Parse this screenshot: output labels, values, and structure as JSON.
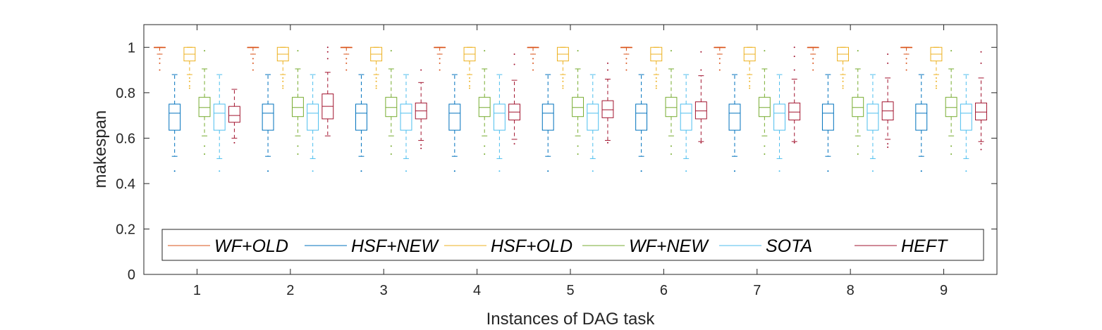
{
  "chart_data": {
    "type": "box",
    "title": "",
    "xlabel": "Instances of DAG task",
    "ylabel": "makespan",
    "ylim": [
      0,
      1.1
    ],
    "xlim": [
      0.43,
      9.57
    ],
    "yticks": [
      0,
      0.2,
      0.4,
      0.6,
      0.8,
      1
    ],
    "yticklabels": [
      "0",
      "0.2",
      "0.4",
      "0.6",
      "0.8",
      "1"
    ],
    "categories": [
      "1",
      "2",
      "3",
      "4",
      "5",
      "6",
      "7",
      "8",
      "9"
    ],
    "grid": false,
    "legend": {
      "position": "bottom-inside",
      "orientation": "horizontal"
    },
    "series": [
      {
        "name": "WF+OLD",
        "color": "#D95319",
        "offset": -0.4,
        "q1": [
          1.0,
          1.0,
          1.0,
          1.0,
          1.0,
          1.0,
          1.0,
          1.0,
          1.0
        ],
        "median": [
          1.0,
          1.0,
          1.0,
          1.0,
          1.0,
          1.0,
          1.0,
          1.0,
          1.0
        ],
        "q3": [
          1.0,
          1.0,
          1.0,
          1.0,
          1.0,
          1.0,
          1.0,
          1.0,
          1.0
        ],
        "lower_whisker": [
          0.97,
          0.97,
          0.97,
          0.97,
          0.97,
          0.97,
          0.97,
          0.97,
          0.97
        ],
        "upper_whisker": [
          1.0,
          1.0,
          1.0,
          1.0,
          1.0,
          1.0,
          1.0,
          1.0,
          1.0
        ],
        "outliers": [
          [
            0.95,
            0.93,
            0.9
          ],
          [
            0.95,
            0.93,
            0.9
          ],
          [
            0.95,
            0.93,
            0.9
          ],
          [
            0.95,
            0.93,
            0.9
          ],
          [
            0.95,
            0.93,
            0.9
          ],
          [
            0.95,
            0.93,
            0.9
          ],
          [
            0.95,
            0.93,
            0.9
          ],
          [
            0.95,
            0.93,
            0.9
          ],
          [
            0.95,
            0.93,
            0.9
          ]
        ]
      },
      {
        "name": "HSF+NEW",
        "color": "#0072BD",
        "offset": -0.24,
        "q1": [
          0.635,
          0.635,
          0.635,
          0.635,
          0.635,
          0.635,
          0.635,
          0.635,
          0.635
        ],
        "median": [
          0.71,
          0.71,
          0.71,
          0.71,
          0.71,
          0.71,
          0.71,
          0.71,
          0.71
        ],
        "q3": [
          0.75,
          0.75,
          0.75,
          0.75,
          0.75,
          0.75,
          0.75,
          0.75,
          0.75
        ],
        "lower_whisker": [
          0.52,
          0.52,
          0.52,
          0.52,
          0.52,
          0.52,
          0.52,
          0.52,
          0.52
        ],
        "upper_whisker": [
          0.88,
          0.88,
          0.88,
          0.88,
          0.88,
          0.88,
          0.88,
          0.88,
          0.88
        ],
        "outliers": [
          [
            0.455
          ],
          [
            0.455
          ],
          [
            0.455
          ],
          [
            0.455
          ],
          [
            0.455
          ],
          [
            0.455
          ],
          [
            0.455
          ],
          [
            0.455
          ],
          [
            0.455
          ]
        ]
      },
      {
        "name": "HSF+OLD",
        "color": "#EDB120",
        "offset": -0.08,
        "q1": [
          0.94,
          0.94,
          0.94,
          0.94,
          0.94,
          0.94,
          0.94,
          0.94,
          0.94
        ],
        "median": [
          0.97,
          0.97,
          0.97,
          0.97,
          0.97,
          0.97,
          0.97,
          0.97,
          0.97
        ],
        "q3": [
          1.0,
          1.0,
          1.0,
          1.0,
          1.0,
          1.0,
          1.0,
          1.0,
          1.0
        ],
        "lower_whisker": [
          0.88,
          0.88,
          0.88,
          0.88,
          0.88,
          0.88,
          0.88,
          0.88,
          0.88
        ],
        "upper_whisker": [
          1.0,
          1.0,
          1.0,
          1.0,
          1.0,
          1.0,
          1.0,
          1.0,
          1.0
        ],
        "outliers": [
          [
            0.865,
            0.85,
            0.83,
            0.82
          ],
          [
            0.865,
            0.85,
            0.83,
            0.82
          ],
          [
            0.865,
            0.85,
            0.83,
            0.82
          ],
          [
            0.865,
            0.85,
            0.83,
            0.82
          ],
          [
            0.865,
            0.85,
            0.83,
            0.82
          ],
          [
            0.865,
            0.85,
            0.83,
            0.82
          ],
          [
            0.865,
            0.85,
            0.83,
            0.82
          ],
          [
            0.865,
            0.85,
            0.83,
            0.82
          ],
          [
            0.865,
            0.85,
            0.83,
            0.82
          ]
        ]
      },
      {
        "name": "WF+NEW",
        "color": "#77AC30",
        "offset": 0.08,
        "q1": [
          0.695,
          0.695,
          0.695,
          0.695,
          0.695,
          0.695,
          0.695,
          0.695,
          0.695
        ],
        "median": [
          0.735,
          0.735,
          0.735,
          0.735,
          0.735,
          0.735,
          0.735,
          0.735,
          0.735
        ],
        "q3": [
          0.78,
          0.78,
          0.78,
          0.78,
          0.78,
          0.78,
          0.78,
          0.78,
          0.78
        ],
        "lower_whisker": [
          0.61,
          0.61,
          0.61,
          0.61,
          0.61,
          0.61,
          0.61,
          0.61,
          0.61
        ],
        "upper_whisker": [
          0.905,
          0.905,
          0.905,
          0.905,
          0.905,
          0.905,
          0.905,
          0.905,
          0.905
        ],
        "outliers": [
          [
            0.565,
            0.53,
            0.985
          ],
          [
            0.565,
            0.53,
            0.985
          ],
          [
            0.565,
            0.53,
            0.985
          ],
          [
            0.565,
            0.53,
            0.985
          ],
          [
            0.565,
            0.53,
            0.985
          ],
          [
            0.565,
            0.53,
            0.985
          ],
          [
            0.565,
            0.53,
            0.985
          ],
          [
            0.565,
            0.53,
            0.985
          ],
          [
            0.565,
            0.53,
            0.985
          ]
        ]
      },
      {
        "name": "SOTA",
        "color": "#4DBEEE",
        "offset": 0.24,
        "q1": [
          0.635,
          0.635,
          0.635,
          0.635,
          0.635,
          0.635,
          0.635,
          0.635,
          0.635
        ],
        "median": [
          0.71,
          0.71,
          0.71,
          0.71,
          0.71,
          0.71,
          0.71,
          0.71,
          0.71
        ],
        "q3": [
          0.75,
          0.75,
          0.75,
          0.75,
          0.75,
          0.75,
          0.75,
          0.75,
          0.75
        ],
        "lower_whisker": [
          0.51,
          0.51,
          0.51,
          0.51,
          0.51,
          0.51,
          0.51,
          0.51,
          0.51
        ],
        "upper_whisker": [
          0.88,
          0.88,
          0.88,
          0.88,
          0.88,
          0.88,
          0.88,
          0.88,
          0.88
        ],
        "outliers": [
          [
            0.455
          ],
          [
            0.455
          ],
          [
            0.455
          ],
          [
            0.455
          ],
          [
            0.455
          ],
          [
            0.455
          ],
          [
            0.455
          ],
          [
            0.455
          ],
          [
            0.455
          ]
        ]
      },
      {
        "name": "HEFT",
        "color": "#A2142F",
        "offset": 0.4,
        "q1": [
          0.67,
          0.685,
          0.685,
          0.68,
          0.69,
          0.685,
          0.68,
          0.68,
          0.68
        ],
        "median": [
          0.7,
          0.74,
          0.72,
          0.715,
          0.725,
          0.72,
          0.715,
          0.72,
          0.715
        ],
        "q3": [
          0.74,
          0.795,
          0.755,
          0.75,
          0.765,
          0.76,
          0.755,
          0.76,
          0.755
        ],
        "lower_whisker": [
          0.6,
          0.61,
          0.59,
          0.595,
          0.59,
          0.585,
          0.585,
          0.595,
          0.585
        ],
        "upper_whisker": [
          0.815,
          0.89,
          0.845,
          0.855,
          0.86,
          0.875,
          0.86,
          0.865,
          0.865
        ],
        "outliers": [
          [
            0.58
          ],
          [
            0.95,
            0.98,
            1.0
          ],
          [
            0.57,
            0.555,
            0.9
          ],
          [
            0.575,
            0.925,
            0.97
          ],
          [
            0.58,
            0.9,
            0.93
          ],
          [
            0.58,
            0.9,
            0.98
          ],
          [
            0.58,
            0.9,
            0.96,
            1.0
          ],
          [
            0.575,
            0.56,
            0.93,
            0.97
          ],
          [
            0.575,
            0.55,
            0.93,
            0.98
          ]
        ]
      }
    ]
  }
}
